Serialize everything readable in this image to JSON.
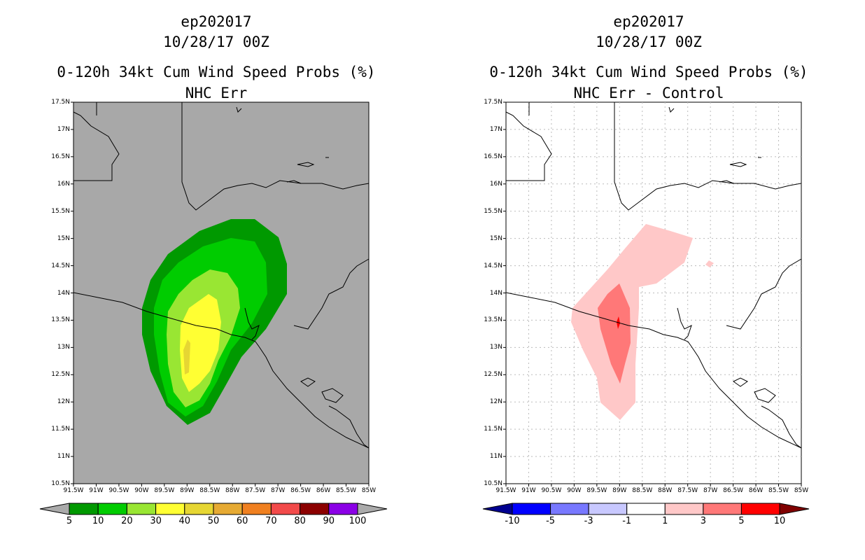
{
  "left_panel": {
    "title_storm": "ep202017",
    "title_time": "10/28/17 00Z",
    "title_product": "0-120h 34kt Cum Wind Speed Probs (%)",
    "title_run": "NHC Err",
    "colorbar": {
      "labels": [
        "5",
        "10",
        "20",
        "30",
        "40",
        "50",
        "60",
        "70",
        "80",
        "90",
        "100"
      ],
      "colors": [
        "#009900",
        "#00cc00",
        "#99e633",
        "#ffff33",
        "#e6d633",
        "#e6aa33",
        "#f08020",
        "#f24a4a",
        "#8c0000",
        "#8b00e6"
      ],
      "under_color": "#aaaaaa",
      "over_color": "#aaaaaa"
    }
  },
  "right_panel": {
    "title_storm": "ep202017",
    "title_time": "10/28/17 00Z",
    "title_product": "0-120h 34kt Cum Wind Speed Probs (%)",
    "title_run": "NHC Err - Control",
    "colorbar": {
      "labels": [
        "-10",
        "-5",
        "-3",
        "-1",
        "1",
        "3",
        "5",
        "10"
      ],
      "colors": [
        "#0000ff",
        "#7878ff",
        "#c8c8ff",
        "#ffffff",
        "#ffc8c8",
        "#ff7878",
        "#ff0000"
      ],
      "under_color": "#000090",
      "over_color": "#800000"
    }
  },
  "map_axes": {
    "lat_labels": [
      "17.5N",
      "17N",
      "16.5N",
      "16N",
      "15.5N",
      "15N",
      "14.5N",
      "14N",
      "13.5N",
      "13N",
      "12.5N",
      "12N",
      "11.5N",
      "11N",
      "10.5N"
    ],
    "lon_labels": [
      "91.5W",
      "91W",
      "90.5W",
      "90W",
      "89.5W",
      "89W",
      "88.5W",
      "88W",
      "87.5W",
      "87W",
      "86.5W",
      "86W",
      "85.5W",
      "85W"
    ]
  },
  "colors": {
    "land_bg_left": "#a8a8a8",
    "grid_right": "#bbbbbb",
    "coast": "#000000"
  }
}
